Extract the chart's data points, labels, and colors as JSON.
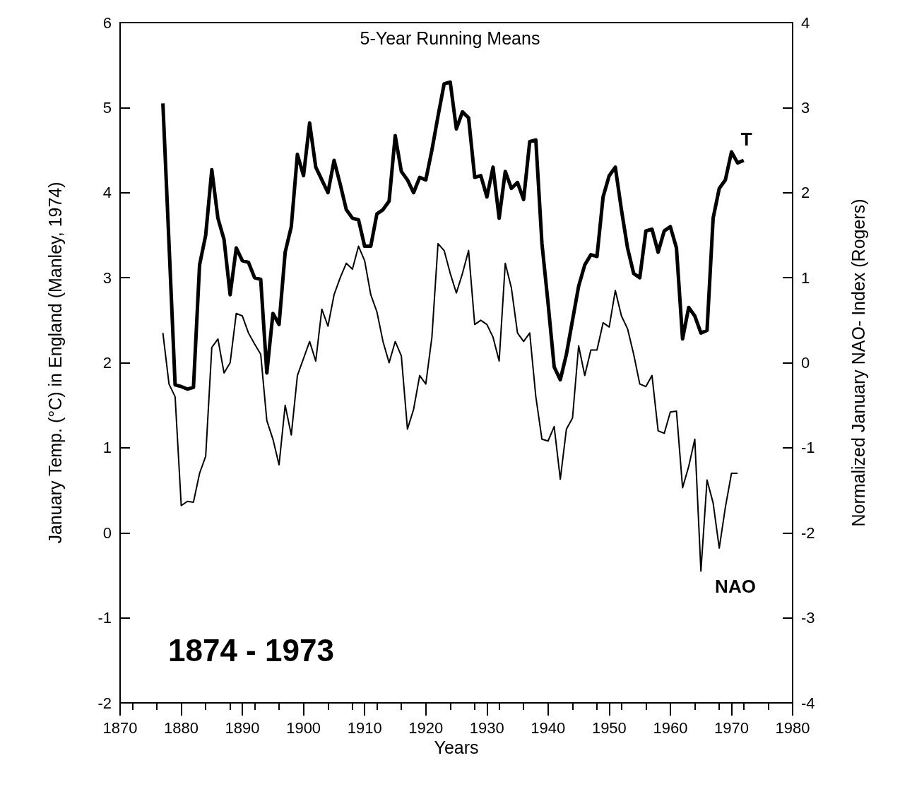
{
  "chart_data": {
    "type": "line",
    "title": "5-Year Running Means",
    "xlabel": "Years",
    "ylabel": "January Temp. (°C) in England (Manley, 1974)",
    "y2label": "Normalized January NAO- Index (Rogers)",
    "annotations": [
      "1874 - 1973"
    ],
    "x": [
      1877,
      1878,
      1879,
      1880,
      1881,
      1882,
      1883,
      1884,
      1885,
      1886,
      1887,
      1888,
      1889,
      1890,
      1891,
      1892,
      1893,
      1894,
      1895,
      1896,
      1897,
      1898,
      1899,
      1900,
      1901,
      1902,
      1903,
      1904,
      1905,
      1906,
      1907,
      1908,
      1909,
      1910,
      1911,
      1912,
      1913,
      1914,
      1915,
      1916,
      1917,
      1918,
      1919,
      1920,
      1921,
      1922,
      1923,
      1924,
      1925,
      1926,
      1927,
      1928,
      1929,
      1930,
      1931,
      1932,
      1933,
      1934,
      1935,
      1936,
      1937,
      1938,
      1939,
      1940,
      1941,
      1942,
      1943,
      1944,
      1945,
      1946,
      1947,
      1948,
      1949,
      1950,
      1951,
      1952,
      1953,
      1954,
      1955,
      1956,
      1957,
      1958,
      1959,
      1960,
      1961,
      1962,
      1963,
      1964,
      1965,
      1966,
      1967,
      1968,
      1969,
      1970,
      1971,
      1972
    ],
    "series": [
      {
        "name": "T",
        "color": "#000000",
        "values": [
          5.05,
          3.4,
          1.74,
          1.72,
          1.69,
          1.71,
          3.15,
          3.5,
          4.27,
          3.7,
          3.45,
          2.8,
          3.35,
          3.2,
          3.18,
          3.0,
          2.98,
          1.88,
          2.58,
          2.45,
          3.3,
          3.6,
          4.45,
          4.2,
          4.82,
          4.3,
          4.15,
          4.0,
          4.38,
          4.1,
          3.8,
          3.7,
          3.68,
          3.37,
          3.37,
          3.75,
          3.8,
          3.9,
          4.67,
          4.25,
          4.15,
          4.0,
          4.18,
          4.15,
          4.5,
          4.9,
          5.28,
          5.3,
          4.75,
          4.95,
          4.88,
          4.18,
          4.2,
          3.95,
          4.3,
          3.7,
          4.25,
          4.05,
          4.12,
          3.92,
          4.6,
          4.62,
          3.4,
          2.7,
          1.95,
          1.8,
          2.1,
          2.5,
          2.9,
          3.15,
          3.27,
          3.25,
          3.95,
          4.2,
          4.3,
          3.8,
          3.35,
          3.05,
          3.0,
          3.55,
          3.57,
          3.3,
          3.55,
          3.6,
          3.35,
          2.28,
          2.65,
          2.55,
          2.35,
          2.38,
          3.7,
          4.05,
          4.15,
          4.48,
          4.35,
          4.38
        ]
      },
      {
        "name": "NAO",
        "color": "#000000",
        "axis": "y2",
        "values": [
          0.35,
          -0.25,
          -0.4,
          -1.68,
          -1.63,
          -1.64,
          -1.3,
          -1.1,
          0.18,
          0.28,
          -0.12,
          0.0,
          0.58,
          0.55,
          0.35,
          0.22,
          0.1,
          -0.68,
          -0.9,
          -1.2,
          -0.5,
          -0.85,
          -0.15,
          0.05,
          0.25,
          0.02,
          0.63,
          0.43,
          0.8,
          1.0,
          1.17,
          1.1,
          1.37,
          1.2,
          0.8,
          0.6,
          0.25,
          0.0,
          0.25,
          0.08,
          -0.78,
          -0.55,
          -0.15,
          -0.25,
          0.3,
          1.4,
          1.32,
          1.05,
          0.82,
          1.05,
          1.32,
          0.45,
          0.5,
          0.45,
          0.3,
          0.02,
          1.17,
          0.88,
          0.35,
          0.25,
          0.35,
          -0.4,
          -0.9,
          -0.92,
          -0.75,
          -1.37,
          -0.78,
          -0.65,
          0.2,
          -0.15,
          0.15,
          0.15,
          0.47,
          0.42,
          0.85,
          0.55,
          0.4,
          0.1,
          -0.25,
          -0.28,
          -0.15,
          -0.8,
          -0.83,
          -0.58,
          -0.57,
          -1.47,
          -1.22,
          -0.9,
          -2.45,
          -1.38,
          -1.65,
          -2.18,
          -1.7,
          -1.3,
          -1.3,
          null
        ]
      }
    ],
    "xlim": [
      1870,
      1980
    ],
    "xticks": [
      1870,
      1880,
      1890,
      1900,
      1910,
      1920,
      1930,
      1940,
      1950,
      1960,
      1970,
      1980
    ],
    "ylim": [
      -2,
      6
    ],
    "yticks": [
      -2,
      -1,
      0,
      1,
      2,
      3,
      4,
      5,
      6
    ],
    "y2lim": [
      -4,
      4
    ],
    "y2ticks": [
      -4,
      -3,
      -2,
      -1,
      0,
      1,
      2,
      3,
      4
    ],
    "grid": false,
    "legend": false,
    "marker": "none",
    "line_style": "solid"
  }
}
